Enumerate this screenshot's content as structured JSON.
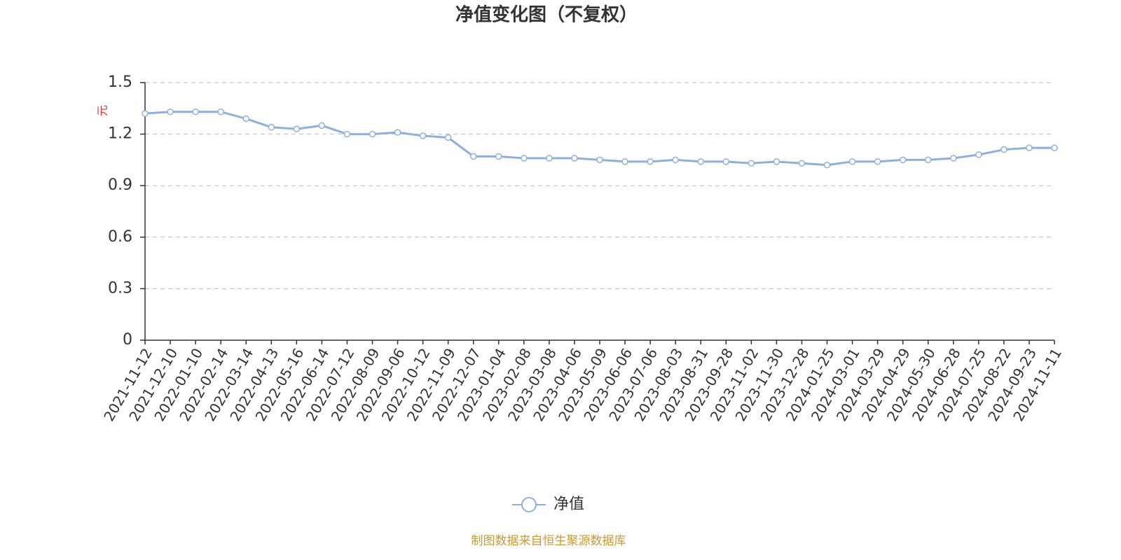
{
  "chart_data": {
    "type": "line",
    "title": "净值变化图（不复权）",
    "y_label": "元",
    "source": "制图数据来自恒生聚源数据库",
    "categories": [
      "2021-11-12",
      "2021-12-10",
      "2022-01-10",
      "2022-02-14",
      "2022-03-14",
      "2022-04-13",
      "2022-05-16",
      "2022-06-14",
      "2022-07-12",
      "2022-08-09",
      "2022-09-06",
      "2022-10-12",
      "2022-11-09",
      "2022-12-07",
      "2023-01-04",
      "2023-02-08",
      "2023-03-08",
      "2023-04-06",
      "2023-05-09",
      "2023-06-06",
      "2023-07-06",
      "2023-08-03",
      "2023-08-31",
      "2023-09-28",
      "2023-11-02",
      "2023-11-30",
      "2023-12-28",
      "2024-01-25",
      "2024-03-01",
      "2024-03-29",
      "2024-04-29",
      "2024-05-30",
      "2024-06-28",
      "2024-07-25",
      "2024-08-22",
      "2024-09-23",
      "2024-11-11"
    ],
    "series": [
      {
        "name": "净值",
        "color": "#8eb0e0",
        "values": [
          1.32,
          1.33,
          1.33,
          1.33,
          1.29,
          1.24,
          1.23,
          1.25,
          1.2,
          1.2,
          1.21,
          1.19,
          1.18,
          1.07,
          1.07,
          1.06,
          1.06,
          1.06,
          1.05,
          1.04,
          1.04,
          1.05,
          1.04,
          1.04,
          1.03,
          1.04,
          1.03,
          1.02,
          1.04,
          1.04,
          1.05,
          1.05,
          1.06,
          1.08,
          1.11,
          1.12,
          1.12
        ]
      }
    ],
    "ylim": [
      0,
      1.5
    ],
    "yticks": [
      0,
      0.3,
      0.6,
      0.9,
      1.2,
      1.5
    ],
    "grid": true,
    "legend": "bottom"
  }
}
